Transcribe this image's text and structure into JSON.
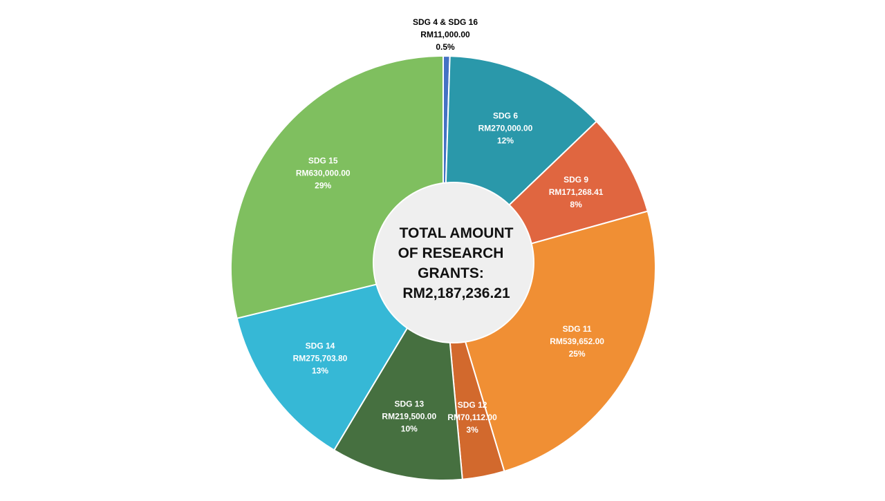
{
  "chart_data": {
    "type": "pie",
    "donut": true,
    "center_text": [
      "TOTAL AMOUNT",
      "OF RESEARCH",
      "GRANTS:",
      "RM2,187,236.21"
    ],
    "slices": [
      {
        "name": "SDG 4 & SDG 16",
        "amount": "RM11,000.00",
        "percent": "0.5%",
        "value": 11000.0,
        "color": "#4472c4",
        "label_outside": true
      },
      {
        "name": "SDG 6",
        "amount": "RM270,000.00",
        "percent": "12%",
        "value": 270000.0,
        "color": "#2a98aa"
      },
      {
        "name": "SDG 9",
        "amount": "RM171,268.41",
        "percent": "8%",
        "value": 171268.41,
        "color": "#e06640"
      },
      {
        "name": "SDG 11",
        "amount": "RM539,652.00",
        "percent": "25%",
        "value": 539652.0,
        "color": "#f08f34"
      },
      {
        "name": "SDG 12",
        "amount": "RM70,112.00",
        "percent": "3%",
        "value": 70112.0,
        "color": "#d2692d"
      },
      {
        "name": "SDG 13",
        "amount": "RM219,500.00",
        "percent": "10%",
        "value": 219500.0,
        "color": "#467040"
      },
      {
        "name": "SDG 14",
        "amount": "RM275,703.80",
        "percent": "13%",
        "value": 275703.8,
        "color": "#36b8d6"
      },
      {
        "name": "SDG 15",
        "amount": "RM630,000.00",
        "percent": "29%",
        "value": 630000.0,
        "color": "#7fbf5f"
      }
    ]
  }
}
